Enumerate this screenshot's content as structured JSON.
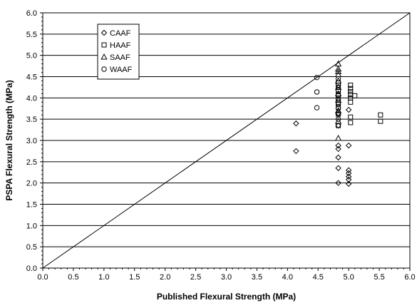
{
  "chart_data": {
    "type": "scatter",
    "title": "",
    "xlabel": "Published Flexural Strength (MPa)",
    "ylabel": "PSPA Flexural Strength (MPa)",
    "xlim": [
      0,
      6
    ],
    "ylim": [
      0,
      6
    ],
    "x_ticks": [
      "0.0",
      "0.5",
      "1.0",
      "1.5",
      "2.0",
      "2.5",
      "3.0",
      "3.5",
      "4.0",
      "4.5",
      "5.0",
      "5.5",
      "6.0"
    ],
    "y_ticks": [
      "0.0",
      "0.5",
      "1.0",
      "1.5",
      "2.0",
      "2.5",
      "3.0",
      "3.5",
      "4.0",
      "4.5",
      "5.0",
      "5.5",
      "6.0"
    ],
    "grid": "horizontal",
    "legend_position": "top-left",
    "reference_line": {
      "x": [
        0,
        6
      ],
      "y": [
        0,
        6
      ]
    },
    "series": [
      {
        "name": "CAAF",
        "marker": "diamond",
        "points": [
          [
            4.14,
            3.4
          ],
          [
            4.14,
            2.75
          ],
          [
            4.83,
            2.0
          ],
          [
            4.83,
            2.35
          ],
          [
            4.83,
            2.6
          ],
          [
            4.83,
            2.8
          ],
          [
            4.83,
            2.88
          ],
          [
            4.83,
            3.35
          ],
          [
            4.83,
            3.62
          ],
          [
            5.0,
            1.98
          ],
          [
            5.0,
            2.08
          ],
          [
            5.0,
            2.15
          ],
          [
            5.0,
            2.23
          ],
          [
            5.0,
            2.3
          ],
          [
            5.0,
            2.88
          ],
          [
            5.0,
            3.72
          ]
        ]
      },
      {
        "name": "HAAF",
        "marker": "square",
        "points": [
          [
            4.83,
            3.35
          ],
          [
            4.83,
            3.62
          ],
          [
            4.83,
            3.78
          ],
          [
            4.83,
            3.9
          ],
          [
            4.83,
            4.05
          ],
          [
            4.83,
            4.15
          ],
          [
            4.83,
            4.25
          ],
          [
            4.83,
            4.35
          ],
          [
            5.03,
            3.42
          ],
          [
            5.03,
            3.55
          ],
          [
            5.03,
            3.9
          ],
          [
            5.03,
            4.0
          ],
          [
            5.03,
            4.08
          ],
          [
            5.03,
            4.15
          ],
          [
            5.03,
            4.22
          ],
          [
            5.03,
            4.3
          ],
          [
            5.1,
            4.05
          ],
          [
            5.52,
            3.45
          ],
          [
            5.52,
            3.6
          ]
        ]
      },
      {
        "name": "SAAF",
        "marker": "triangle",
        "points": [
          [
            4.83,
            3.05
          ],
          [
            4.83,
            3.45
          ],
          [
            4.83,
            3.7
          ],
          [
            4.83,
            3.95
          ],
          [
            4.83,
            4.1
          ],
          [
            4.83,
            4.25
          ],
          [
            4.83,
            4.4
          ],
          [
            4.83,
            4.55
          ],
          [
            4.83,
            4.62
          ],
          [
            4.83,
            4.68
          ],
          [
            4.83,
            4.8
          ]
        ]
      },
      {
        "name": "WAAF",
        "marker": "circle",
        "points": [
          [
            4.48,
            4.48
          ],
          [
            4.48,
            4.14
          ],
          [
            4.48,
            3.77
          ],
          [
            4.83,
            3.5
          ],
          [
            4.83,
            3.65
          ],
          [
            4.83,
            3.75
          ],
          [
            4.83,
            3.85
          ],
          [
            4.83,
            3.97
          ],
          [
            4.83,
            4.07
          ],
          [
            4.83,
            4.18
          ],
          [
            4.83,
            4.3
          ],
          [
            4.83,
            4.45
          ]
        ]
      }
    ]
  }
}
